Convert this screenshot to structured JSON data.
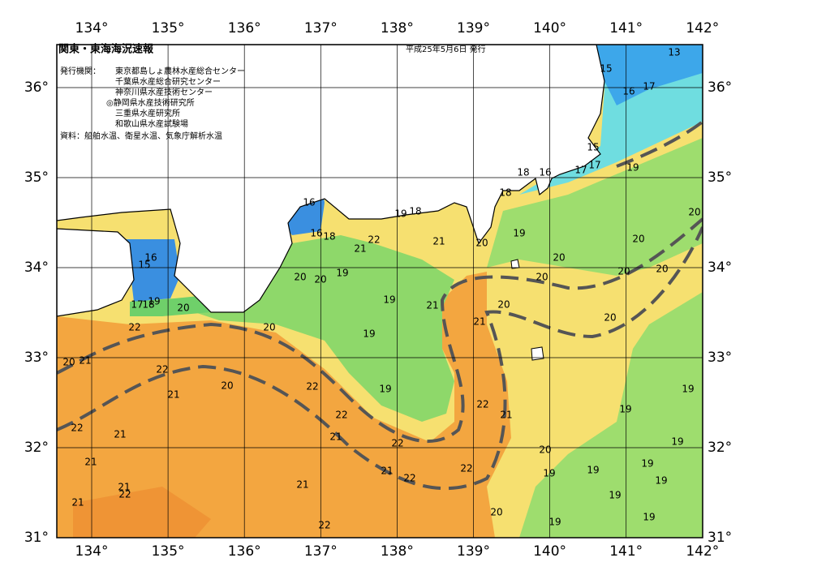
{
  "header": {
    "title": "関東・東海海況速報",
    "date": "平成25年5月6日 発行",
    "issuer_label": "発行機関：",
    "issuers": [
      "東京都島しょ農林水産総合センター",
      "千葉県水産総合研究センター",
      "神奈川県水産技術センター",
      "◎静岡県水産技術研究所",
      "三重県水産研究所",
      "和歌山県水産試験場"
    ],
    "source": "資料：船舶水温、衛星水温、気象庁解析水温"
  },
  "map": {
    "lon_ticks": [
      {
        "value": 134,
        "label": "134°"
      },
      {
        "value": 135,
        "label": "135°"
      },
      {
        "value": 136,
        "label": "136°"
      },
      {
        "value": 137,
        "label": "137°"
      },
      {
        "value": 138,
        "label": "138°"
      },
      {
        "value": 139,
        "label": "139°"
      },
      {
        "value": 140,
        "label": "140°"
      },
      {
        "value": 141,
        "label": "141°"
      },
      {
        "value": 142,
        "label": "142°"
      }
    ],
    "lat_ticks": [
      {
        "value": 31,
        "label": "31°"
      },
      {
        "value": 32,
        "label": "32°"
      },
      {
        "value": 33,
        "label": "33°"
      },
      {
        "value": 34,
        "label": "34°"
      },
      {
        "value": 35,
        "label": "35°"
      },
      {
        "value": 36,
        "label": "36°"
      }
    ],
    "contour_labels": [
      13,
      15,
      16,
      17,
      15,
      17,
      17,
      16,
      18,
      19,
      18,
      20,
      16,
      19,
      18,
      16,
      18,
      22,
      21,
      20,
      19,
      21,
      20,
      16,
      15,
      20,
      20,
      20,
      20,
      19,
      20,
      20,
      17,
      18,
      19,
      20,
      19,
      21,
      20,
      22,
      20,
      20,
      19,
      21,
      20,
      21,
      22,
      21,
      20,
      22,
      19,
      19,
      22,
      21,
      22,
      22,
      21,
      21,
      22,
      19,
      20,
      19,
      21,
      19,
      19,
      19,
      21,
      22,
      22,
      19,
      21,
      22,
      21,
      19,
      21,
      20,
      19,
      19,
      22
    ]
  }
}
